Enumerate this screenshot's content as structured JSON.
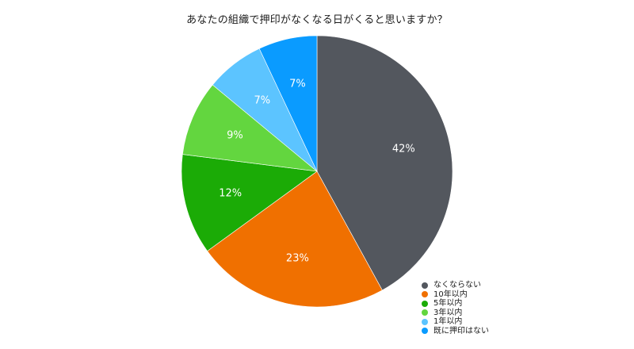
{
  "chart_data": {
    "type": "pie",
    "title": "あなたの組織で押印がなくなる日がくると思いますか？",
    "slices": [
      {
        "label": "なくならない",
        "value": 42,
        "display": "42%",
        "color": "#53575e"
      },
      {
        "label": "10年以内",
        "value": 23,
        "display": "23%",
        "color": "#f07000"
      },
      {
        "label": "5年以内",
        "value": 12,
        "display": "12%",
        "color": "#1bab06"
      },
      {
        "label": "3年以内",
        "value": 9,
        "display": "9%",
        "color": "#63d63f"
      },
      {
        "label": "1年以内",
        "value": 7,
        "display": "7%",
        "color": "#5cc4ff"
      },
      {
        "label": "既に押印はない",
        "value": 7,
        "display": "7%",
        "color": "#0a9bff"
      }
    ],
    "start_angle": "12 o'clock",
    "direction": "clockwise",
    "legend_position": "bottom-right"
  }
}
